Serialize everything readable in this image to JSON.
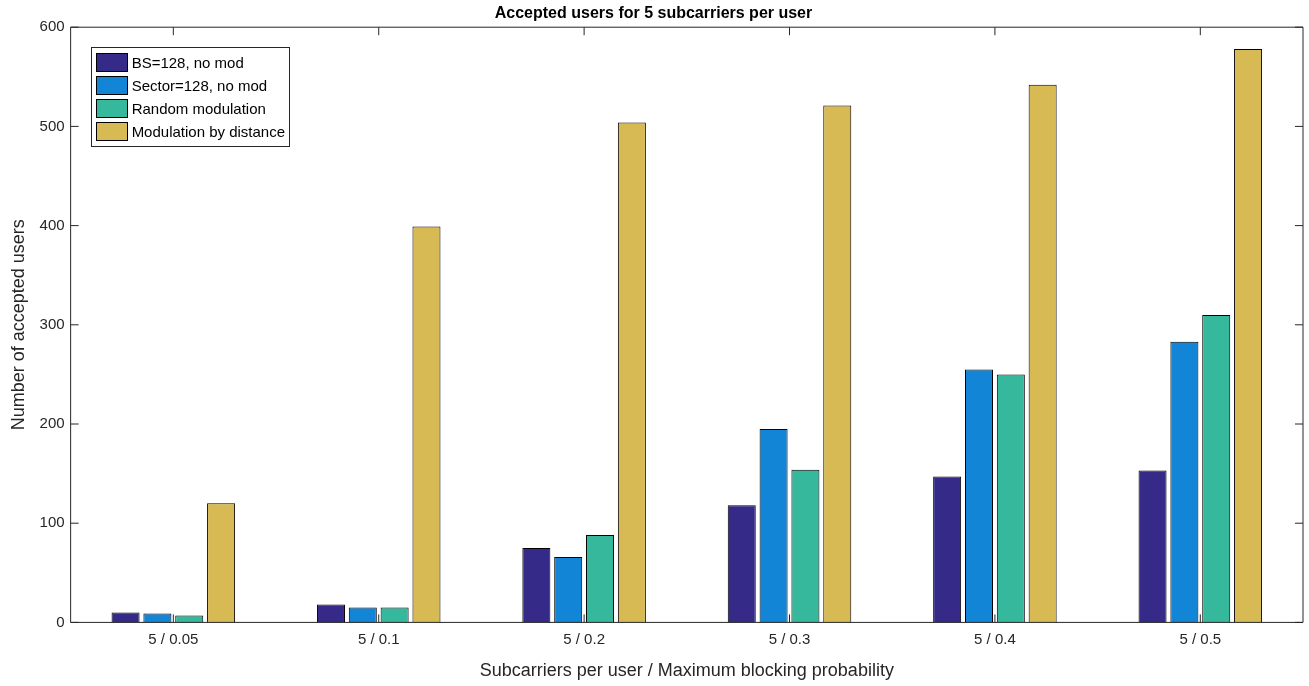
{
  "chart_data": {
    "type": "bar",
    "title": "Accepted users for 5 subcarriers per user",
    "xlabel": "Subcarriers per user / Maximum blocking probability",
    "ylabel": "Number of accepted users",
    "categories": [
      "5 / 0.05",
      "5 / 0.1",
      "5 / 0.2",
      "5 / 0.3",
      "5 / 0.4",
      "5 / 0.5"
    ],
    "series": [
      {
        "name": "BS=128, no mod",
        "color": "#352a87",
        "values": [
          10,
          18,
          75,
          118,
          147,
          153
        ]
      },
      {
        "name": "Sector=128, no mod",
        "color": "#1385d6",
        "values": [
          9,
          15,
          66,
          195,
          255,
          283
        ]
      },
      {
        "name": "Random modulation",
        "color": "#36b89c",
        "values": [
          7,
          15,
          88,
          154,
          250,
          310
        ]
      },
      {
        "name": "Modulation by distance",
        "color": "#d7ba53",
        "values": [
          120,
          399,
          504,
          521,
          542,
          578
        ]
      }
    ],
    "ylim": [
      0,
      600
    ],
    "yticks": [
      0,
      100,
      200,
      300,
      400,
      500,
      600
    ],
    "grid": false,
    "legend": "top left"
  }
}
